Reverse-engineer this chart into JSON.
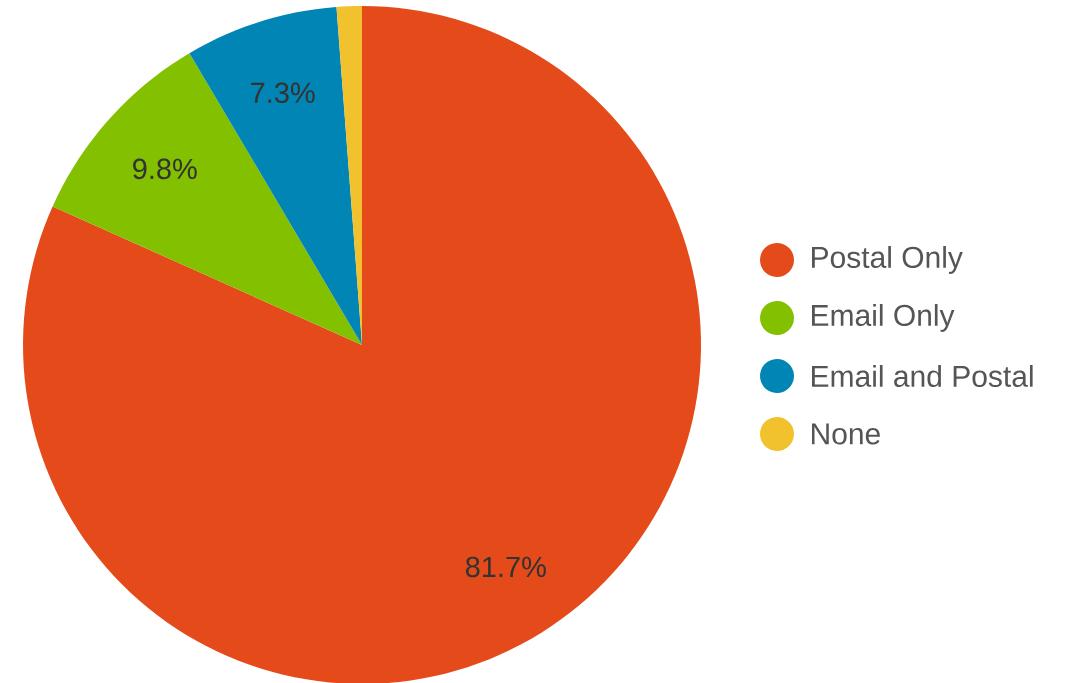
{
  "chart_data": {
    "type": "pie",
    "categories": [
      "Postal Only",
      "Email Only",
      "Email and Postal",
      "None"
    ],
    "values": [
      81.7,
      9.8,
      7.3,
      1.2
    ],
    "colors": [
      "#e54b1a",
      "#82c000",
      "#0085b5",
      "#f2c12e"
    ],
    "value_labels": [
      "81.7%",
      "9.8%",
      "7.3%",
      null
    ],
    "legend": "right"
  }
}
